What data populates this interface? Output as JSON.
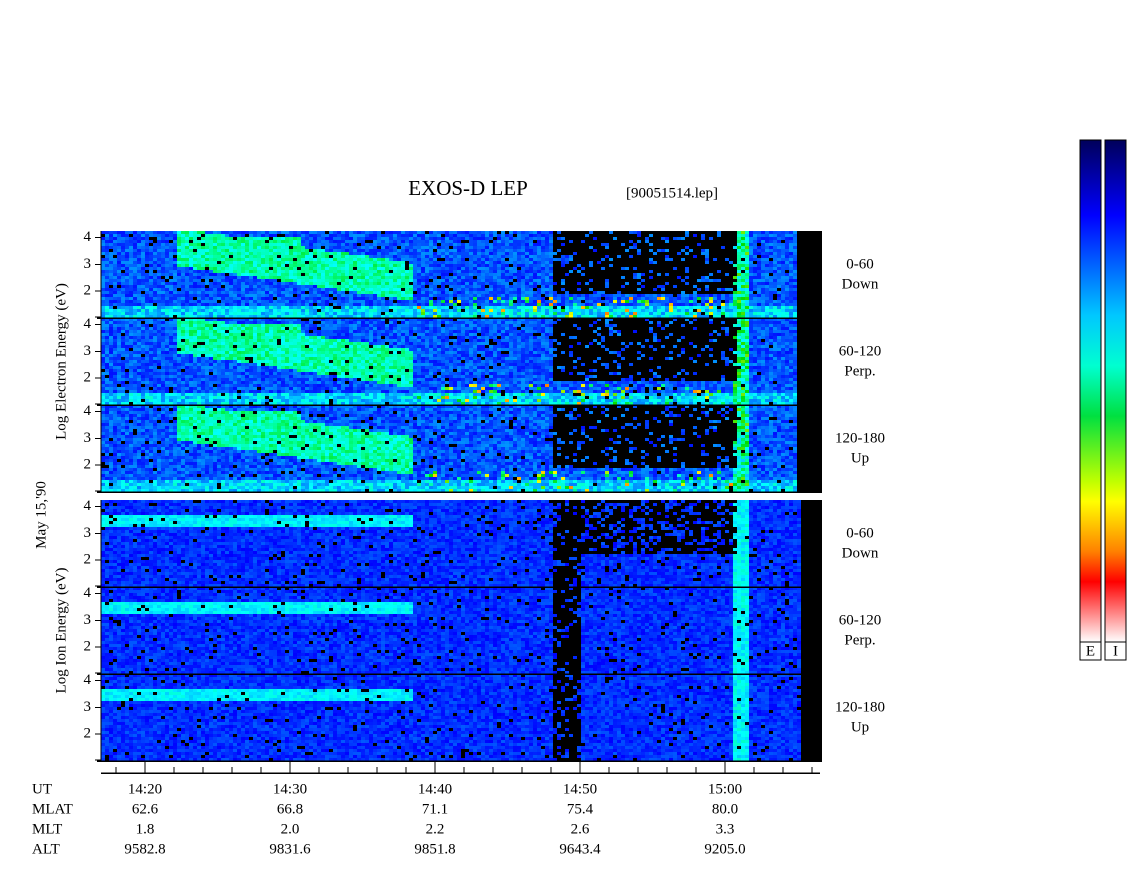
{
  "header": {
    "title": "EXOS-D LEP",
    "file": "[90051514.lep]"
  },
  "date": "May 15,'90",
  "groups": [
    {
      "axis_label": "Log Electron Energy (eV)",
      "panels": [
        {
          "angle": "0-60",
          "direction": "Down"
        },
        {
          "angle": "60-120",
          "direction": "Perp."
        },
        {
          "angle": "120-180",
          "direction": "Up"
        }
      ]
    },
    {
      "axis_label": "Log Ion Energy (eV)",
      "panels": [
        {
          "angle": "0-60",
          "direction": "Down"
        },
        {
          "angle": "60-120",
          "direction": "Perp."
        },
        {
          "angle": "120-180",
          "direction": "Up"
        }
      ]
    }
  ],
  "energy_axis": {
    "ylim": [
      1,
      4.25
    ],
    "yticks": [
      2,
      3,
      4
    ]
  },
  "time_axis": {
    "rows": [
      {
        "name": "UT",
        "values": [
          "14:20",
          "14:30",
          "14:40",
          "14:50",
          "15:00"
        ]
      },
      {
        "name": "MLAT",
        "values": [
          "62.6",
          "66.8",
          "71.1",
          "75.4",
          "80.0"
        ]
      },
      {
        "name": "MLT",
        "values": [
          "1.8",
          "2.0",
          "2.2",
          "2.6",
          "3.3"
        ]
      },
      {
        "name": "ALT",
        "values": [
          "9582.8",
          "9831.6",
          "9851.8",
          "9643.4",
          "9205.0"
        ]
      }
    ]
  },
  "colorbars": [
    "E",
    "I"
  ]
}
